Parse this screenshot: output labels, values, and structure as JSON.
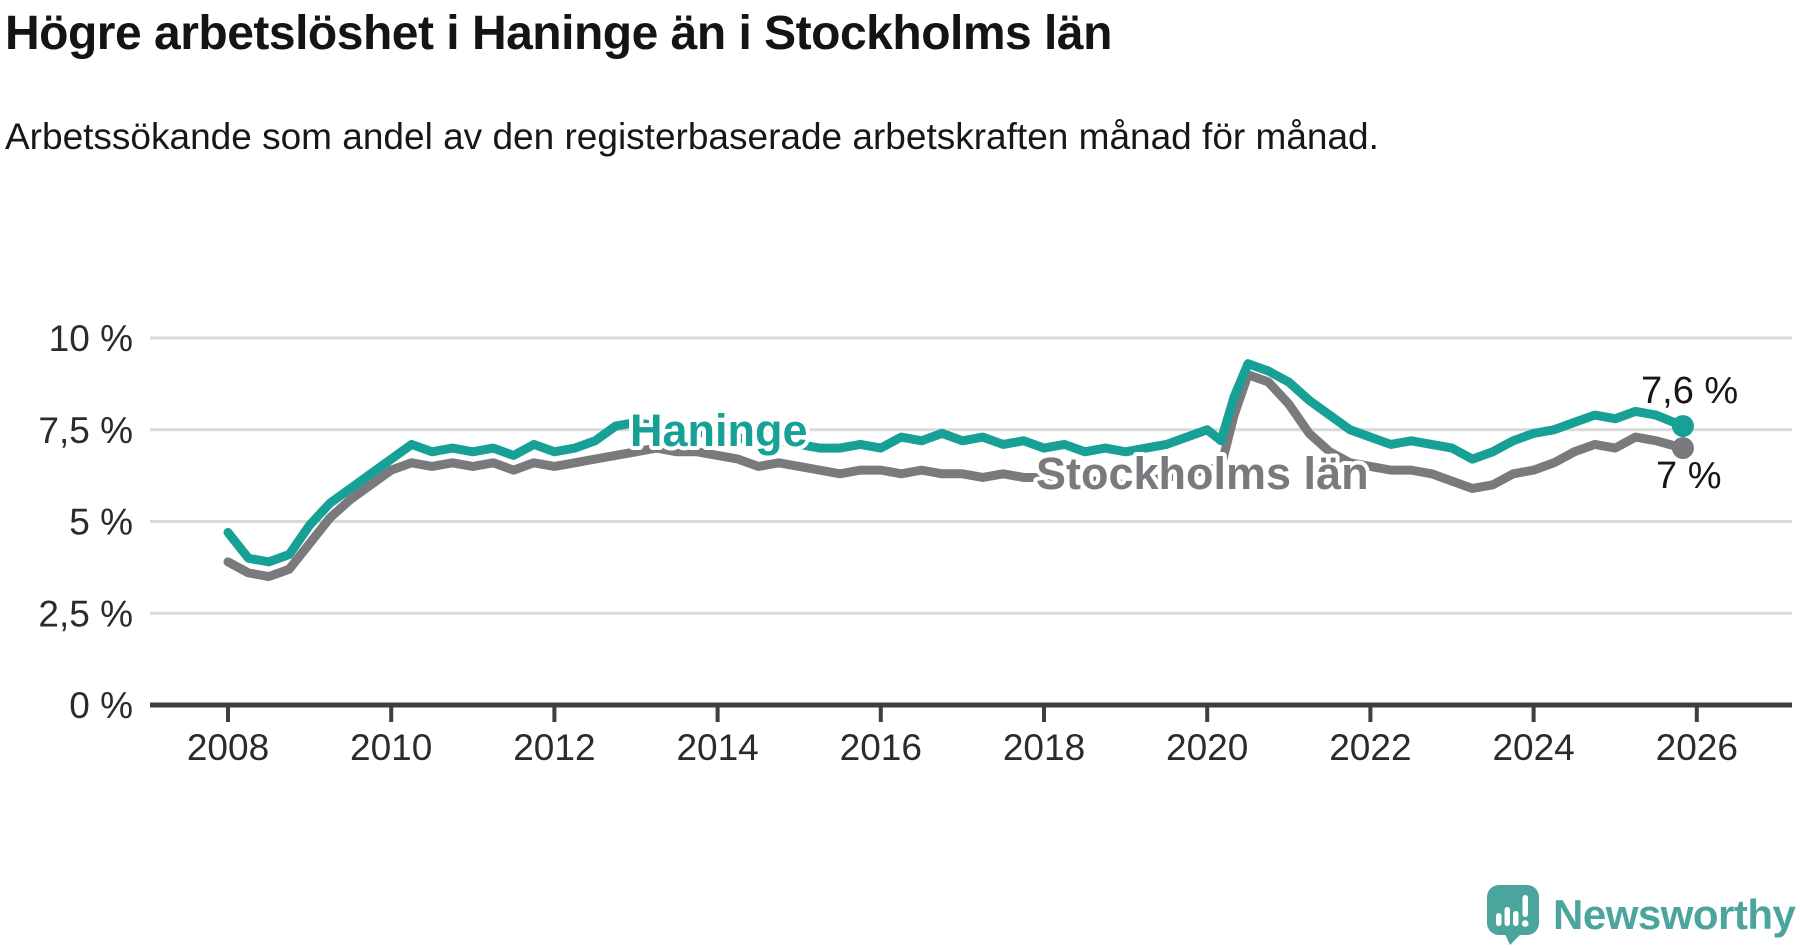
{
  "header": {
    "title": "Högre arbetslöshet i Haninge än i Stockholms län",
    "subtitle": "Arbetssökande som andel av den registerbaserade arbetskraften månad för månad."
  },
  "branding": {
    "label": "Newsworthy",
    "color": "#4ba59c",
    "icon": "newsworthy-speech-bubble-bar-chart-icon"
  },
  "colors": {
    "haninge_line": "#17a096",
    "stockholm_line": "#7a7a7e",
    "gridline": "#d9d9d9",
    "axis": "#3f3f3f",
    "label_text": "#161616"
  },
  "chart_data": {
    "type": "line",
    "title": "Högre arbetslöshet i Haninge än i Stockholms län",
    "subtitle": "Arbetssökande som andel av den registerbaserade arbetskraften månad för månad.",
    "unit": "%",
    "grid": "horizontal-only",
    "legend": "inline-series-labels",
    "xlim": [
      2007.0,
      2027.2
    ],
    "ylim": [
      0,
      10.5
    ],
    "x_axis": {
      "ticks": [
        {
          "value": 2008,
          "label": "2008"
        },
        {
          "value": 2010,
          "label": "2010"
        },
        {
          "value": 2012,
          "label": "2012"
        },
        {
          "value": 2014,
          "label": "2014"
        },
        {
          "value": 2016,
          "label": "2016"
        },
        {
          "value": 2018,
          "label": "2018"
        },
        {
          "value": 2020,
          "label": "2020"
        },
        {
          "value": 2022,
          "label": "2022"
        },
        {
          "value": 2024,
          "label": "2024"
        },
        {
          "value": 2026,
          "label": "2026"
        }
      ]
    },
    "y_axis": {
      "ticks": [
        {
          "value": 0,
          "label": "0 %"
        },
        {
          "value": 2.5,
          "label": "2,5 %"
        },
        {
          "value": 5,
          "label": "5 %"
        },
        {
          "value": 7.5,
          "label": "7,5 %"
        },
        {
          "value": 10,
          "label": "10 %"
        }
      ]
    },
    "x": [
      2008,
      2008.25,
      2008.5,
      2008.75,
      2009,
      2009.25,
      2009.5,
      2009.75,
      2010,
      2010.25,
      2010.5,
      2010.75,
      2011,
      2011.25,
      2011.5,
      2011.75,
      2012,
      2012.25,
      2012.5,
      2012.75,
      2013,
      2013.25,
      2013.5,
      2013.75,
      2014,
      2014.25,
      2014.5,
      2014.75,
      2015,
      2015.25,
      2015.5,
      2015.75,
      2016,
      2016.25,
      2016.5,
      2016.75,
      2017,
      2017.25,
      2017.5,
      2017.75,
      2018,
      2018.25,
      2018.5,
      2018.75,
      2019,
      2019.25,
      2019.5,
      2019.75,
      2020,
      2020.17,
      2020.33,
      2020.5,
      2020.75,
      2021,
      2021.25,
      2021.5,
      2021.75,
      2022,
      2022.25,
      2022.5,
      2022.75,
      2023,
      2023.25,
      2023.5,
      2023.75,
      2024,
      2024.25,
      2024.5,
      2024.75,
      2025,
      2025.25,
      2025.5,
      2025.83
    ],
    "series": [
      {
        "id": "haninge",
        "name": "Haninge",
        "color": "#17a096",
        "end_label": "7,6 %",
        "end_value": 7.6,
        "values": [
          4.7,
          4.0,
          3.9,
          4.1,
          4.9,
          5.5,
          5.9,
          6.3,
          6.7,
          7.1,
          6.9,
          7.0,
          6.9,
          7.0,
          6.8,
          7.1,
          6.9,
          7.0,
          7.2,
          7.6,
          7.7,
          7.6,
          7.5,
          7.4,
          7.5,
          7.3,
          7.1,
          7.2,
          7.1,
          7.0,
          7.0,
          7.1,
          7.0,
          7.3,
          7.2,
          7.4,
          7.2,
          7.3,
          7.1,
          7.2,
          7.0,
          7.1,
          6.9,
          7.0,
          6.9,
          7.0,
          7.1,
          7.3,
          7.5,
          7.2,
          8.4,
          9.3,
          9.1,
          8.8,
          8.3,
          7.9,
          7.5,
          7.3,
          7.1,
          7.2,
          7.1,
          7.0,
          6.7,
          6.9,
          7.2,
          7.4,
          7.5,
          7.7,
          7.9,
          7.8,
          8.0,
          7.9,
          7.6
        ]
      },
      {
        "id": "stockholms-lan",
        "name": "Stockholms län",
        "color": "#7a7a7e",
        "end_label": "7 %",
        "end_value": 7.0,
        "values": [
          3.9,
          3.6,
          3.5,
          3.7,
          4.4,
          5.1,
          5.6,
          6.0,
          6.4,
          6.6,
          6.5,
          6.6,
          6.5,
          6.6,
          6.4,
          6.6,
          6.5,
          6.6,
          6.7,
          6.8,
          6.9,
          7.0,
          6.9,
          6.9,
          6.8,
          6.7,
          6.5,
          6.6,
          6.5,
          6.4,
          6.3,
          6.4,
          6.4,
          6.3,
          6.4,
          6.3,
          6.3,
          6.2,
          6.3,
          6.2,
          6.2,
          6.1,
          6.1,
          6.1,
          6.0,
          6.1,
          6.2,
          6.3,
          6.4,
          6.5,
          7.9,
          9.0,
          8.8,
          8.2,
          7.4,
          6.9,
          6.6,
          6.5,
          6.4,
          6.4,
          6.3,
          6.1,
          5.9,
          6.0,
          6.3,
          6.4,
          6.6,
          6.9,
          7.1,
          7.0,
          7.3,
          7.2,
          7.0
        ]
      }
    ]
  }
}
